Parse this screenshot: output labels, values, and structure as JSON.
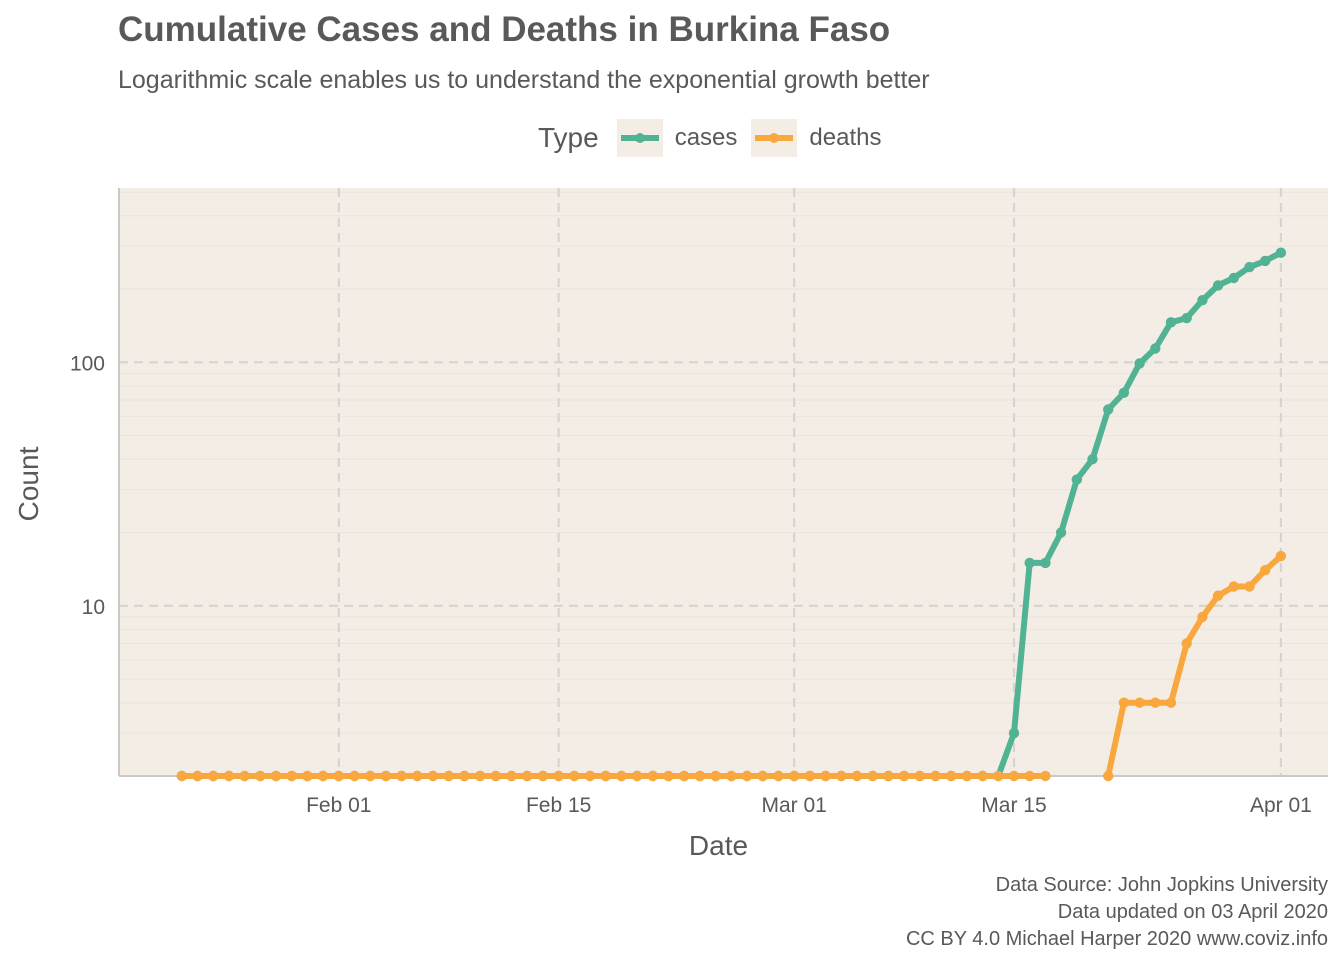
{
  "chart_data": {
    "type": "line",
    "title": "Cumulative Cases and Deaths in Burkina Faso",
    "subtitle": "Logarithmic scale enables us to understand the exponential growth better",
    "xlabel": "Date",
    "ylabel": "Count",
    "y_scale": "log",
    "y_ticks": [
      10,
      100
    ],
    "y_tick_labels": [
      "10",
      "100"
    ],
    "x_ticks": [
      "2020-02-01",
      "2020-02-15",
      "2020-03-01",
      "2020-03-15",
      "2020-04-01"
    ],
    "x_tick_labels": [
      "Feb 01",
      "Feb 15",
      "Mar 01",
      "Mar 15",
      "Apr 01"
    ],
    "xlim": [
      "2020-01-18",
      "2020-04-04"
    ],
    "ylim": [
      2,
      520
    ],
    "grid": true,
    "legend": {
      "title": "Type",
      "position": "top"
    },
    "colors": {
      "panel_background": "#f3ede6",
      "grid_major": "#d6d3d0",
      "grid_minor": "#e9e4de",
      "axis_line": "#c9c9c9"
    },
    "series": [
      {
        "name": "cases",
        "color": "#52b394",
        "points": [
          [
            "2020-01-22",
            0
          ],
          [
            "2020-01-23",
            0
          ],
          [
            "2020-01-24",
            0
          ],
          [
            "2020-01-25",
            0
          ],
          [
            "2020-01-26",
            0
          ],
          [
            "2020-01-27",
            0
          ],
          [
            "2020-01-28",
            0
          ],
          [
            "2020-01-29",
            0
          ],
          [
            "2020-01-30",
            0
          ],
          [
            "2020-01-31",
            0
          ],
          [
            "2020-02-01",
            0
          ],
          [
            "2020-02-02",
            0
          ],
          [
            "2020-02-03",
            0
          ],
          [
            "2020-02-04",
            0
          ],
          [
            "2020-02-05",
            0
          ],
          [
            "2020-02-06",
            0
          ],
          [
            "2020-02-07",
            0
          ],
          [
            "2020-02-08",
            0
          ],
          [
            "2020-02-09",
            0
          ],
          [
            "2020-02-10",
            0
          ],
          [
            "2020-02-11",
            0
          ],
          [
            "2020-02-12",
            0
          ],
          [
            "2020-02-13",
            0
          ],
          [
            "2020-02-14",
            0
          ],
          [
            "2020-02-15",
            0
          ],
          [
            "2020-02-16",
            0
          ],
          [
            "2020-02-17",
            0
          ],
          [
            "2020-02-18",
            0
          ],
          [
            "2020-02-19",
            0
          ],
          [
            "2020-02-20",
            0
          ],
          [
            "2020-02-21",
            0
          ],
          [
            "2020-02-22",
            0
          ],
          [
            "2020-02-23",
            0
          ],
          [
            "2020-02-24",
            0
          ],
          [
            "2020-02-25",
            0
          ],
          [
            "2020-02-26",
            0
          ],
          [
            "2020-02-27",
            0
          ],
          [
            "2020-02-28",
            0
          ],
          [
            "2020-02-29",
            0
          ],
          [
            "2020-03-01",
            0
          ],
          [
            "2020-03-02",
            0
          ],
          [
            "2020-03-03",
            0
          ],
          [
            "2020-03-04",
            0
          ],
          [
            "2020-03-05",
            0
          ],
          [
            "2020-03-06",
            0
          ],
          [
            "2020-03-07",
            0
          ],
          [
            "2020-03-08",
            0
          ],
          [
            "2020-03-09",
            0
          ],
          [
            "2020-03-10",
            0
          ],
          [
            "2020-03-11",
            0
          ],
          [
            "2020-03-12",
            0
          ],
          [
            "2020-03-13",
            0
          ],
          [
            "2020-03-14",
            0
          ],
          [
            "2020-03-15",
            3
          ],
          [
            "2020-03-16",
            15
          ],
          [
            "2020-03-17",
            15
          ],
          [
            "2020-03-18",
            20
          ],
          [
            "2020-03-19",
            33
          ],
          [
            "2020-03-20",
            40
          ],
          [
            "2020-03-21",
            64
          ],
          [
            "2020-03-22",
            75
          ],
          [
            "2020-03-23",
            99
          ],
          [
            "2020-03-24",
            114
          ],
          [
            "2020-03-25",
            146
          ],
          [
            "2020-03-26",
            152
          ],
          [
            "2020-03-27",
            180
          ],
          [
            "2020-03-28",
            207
          ],
          [
            "2020-03-29",
            222
          ],
          [
            "2020-03-30",
            246
          ],
          [
            "2020-03-31",
            261
          ],
          [
            "2020-04-01",
            282
          ]
        ]
      },
      {
        "name": "deaths",
        "color": "#f9a83f",
        "points": [
          [
            "2020-01-22",
            0
          ],
          [
            "2020-01-23",
            0
          ],
          [
            "2020-01-24",
            0
          ],
          [
            "2020-01-25",
            0
          ],
          [
            "2020-01-26",
            0
          ],
          [
            "2020-01-27",
            0
          ],
          [
            "2020-01-28",
            0
          ],
          [
            "2020-01-29",
            0
          ],
          [
            "2020-01-30",
            0
          ],
          [
            "2020-01-31",
            0
          ],
          [
            "2020-02-01",
            0
          ],
          [
            "2020-02-02",
            0
          ],
          [
            "2020-02-03",
            0
          ],
          [
            "2020-02-04",
            0
          ],
          [
            "2020-02-05",
            0
          ],
          [
            "2020-02-06",
            0
          ],
          [
            "2020-02-07",
            0
          ],
          [
            "2020-02-08",
            0
          ],
          [
            "2020-02-09",
            0
          ],
          [
            "2020-02-10",
            0
          ],
          [
            "2020-02-11",
            0
          ],
          [
            "2020-02-12",
            0
          ],
          [
            "2020-02-13",
            0
          ],
          [
            "2020-02-14",
            0
          ],
          [
            "2020-02-15",
            0
          ],
          [
            "2020-02-16",
            0
          ],
          [
            "2020-02-17",
            0
          ],
          [
            "2020-02-18",
            0
          ],
          [
            "2020-02-19",
            0
          ],
          [
            "2020-02-20",
            0
          ],
          [
            "2020-02-21",
            0
          ],
          [
            "2020-02-22",
            0
          ],
          [
            "2020-02-23",
            0
          ],
          [
            "2020-02-24",
            0
          ],
          [
            "2020-02-25",
            0
          ],
          [
            "2020-02-26",
            0
          ],
          [
            "2020-02-27",
            0
          ],
          [
            "2020-02-28",
            0
          ],
          [
            "2020-02-29",
            0
          ],
          [
            "2020-03-01",
            0
          ],
          [
            "2020-03-02",
            0
          ],
          [
            "2020-03-03",
            0
          ],
          [
            "2020-03-04",
            0
          ],
          [
            "2020-03-05",
            0
          ],
          [
            "2020-03-06",
            0
          ],
          [
            "2020-03-07",
            0
          ],
          [
            "2020-03-08",
            0
          ],
          [
            "2020-03-09",
            0
          ],
          [
            "2020-03-10",
            0
          ],
          [
            "2020-03-11",
            0
          ],
          [
            "2020-03-12",
            0
          ],
          [
            "2020-03-13",
            0
          ],
          [
            "2020-03-14",
            0
          ],
          [
            "2020-03-15",
            0
          ],
          [
            "2020-03-16",
            0
          ],
          [
            "2020-03-17",
            0
          ],
          [
            "2020-03-21",
            1
          ],
          [
            "2020-03-22",
            4
          ],
          [
            "2020-03-23",
            4
          ],
          [
            "2020-03-24",
            4
          ],
          [
            "2020-03-25",
            4
          ],
          [
            "2020-03-26",
            7
          ],
          [
            "2020-03-27",
            9
          ],
          [
            "2020-03-28",
            11
          ],
          [
            "2020-03-29",
            12
          ],
          [
            "2020-03-30",
            12
          ],
          [
            "2020-03-31",
            14
          ],
          [
            "2020-04-01",
            16
          ]
        ]
      }
    ]
  },
  "caption": {
    "line1": "Data Source: John Jopkins University",
    "line2": "Data updated on 03 April 2020",
    "line3": "CC BY 4.0 Michael Harper 2020 www.coviz.info"
  }
}
